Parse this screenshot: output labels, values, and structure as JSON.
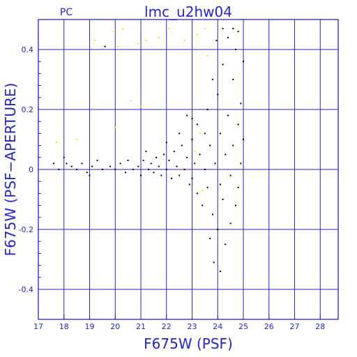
{
  "chart_data": {
    "type": "scatter",
    "title": "lmc_u2hw04",
    "corner_label": "PC",
    "xlabel": "F675W (PSF)",
    "ylabel": "F675W (PSF−APERTURE)",
    "xlim": [
      17,
      28.7
    ],
    "ylim": [
      -0.5,
      0.5
    ],
    "x_ticks": [
      17,
      18,
      19,
      20,
      21,
      22,
      23,
      24,
      25,
      26,
      27,
      28
    ],
    "y_ticks": [
      -0.4,
      -0.2,
      0,
      0.2,
      0.4
    ],
    "y_tick_labels": [
      "-0.4",
      "-0.2",
      "0",
      "0.2",
      "0.4"
    ],
    "grid": true,
    "colors": {
      "frame": "#2323cc",
      "grid": "#2323cc",
      "text": "#2323cc",
      "points": "#000000",
      "rejected_points": "#e8e800"
    },
    "series": [
      {
        "color": "#000000",
        "points": [
          [
            17.6,
            0.02
          ],
          [
            17.8,
            0.0
          ],
          [
            18.0,
            0.04
          ],
          [
            18.1,
            0.02
          ],
          [
            18.3,
            0.01
          ],
          [
            18.5,
            0.0
          ],
          [
            18.7,
            0.02
          ],
          [
            18.9,
            -0.01
          ],
          [
            19.0,
            -0.02
          ],
          [
            19.1,
            0.01
          ],
          [
            19.3,
            0.03
          ],
          [
            19.5,
            0.0
          ],
          [
            19.6,
            0.41
          ],
          [
            19.8,
            0.01
          ],
          [
            20.0,
            0.0
          ],
          [
            20.2,
            0.02
          ],
          [
            20.4,
            -0.01
          ],
          [
            20.5,
            0.03
          ],
          [
            20.7,
            0.0
          ],
          [
            20.9,
            0.01
          ],
          [
            21.0,
            -0.02
          ],
          [
            21.1,
            0.03
          ],
          [
            21.3,
            0.0
          ],
          [
            21.4,
            0.02
          ],
          [
            21.5,
            -0.01
          ],
          [
            21.6,
            0.04
          ],
          [
            21.7,
            0.01
          ],
          [
            21.8,
            -0.02
          ],
          [
            21.9,
            0.05
          ],
          [
            22.0,
            0.0
          ],
          [
            22.1,
            0.03
          ],
          [
            22.2,
            -0.03
          ],
          [
            22.3,
            0.06
          ],
          [
            22.4,
            0.01
          ],
          [
            22.5,
            -0.02
          ],
          [
            22.6,
            0.08
          ],
          [
            22.7,
            0.0
          ],
          [
            22.8,
            0.04
          ],
          [
            22.9,
            -0.05
          ],
          [
            23.0,
            0.1
          ],
          [
            23.0,
            -0.03
          ],
          [
            23.1,
            0.02
          ],
          [
            23.2,
            0.15
          ],
          [
            23.2,
            -0.08
          ],
          [
            23.3,
            0.05
          ],
          [
            23.4,
            -0.12
          ],
          [
            23.5,
            0.12
          ],
          [
            23.5,
            0.0
          ],
          [
            23.6,
            0.2
          ],
          [
            23.6,
            -0.06
          ],
          [
            23.7,
            0.08
          ],
          [
            23.8,
            0.3
          ],
          [
            23.8,
            -0.15
          ],
          [
            23.9,
            0.02
          ],
          [
            24.0,
            0.25
          ],
          [
            24.0,
            -0.2
          ],
          [
            24.1,
            0.12
          ],
          [
            24.1,
            -0.05
          ],
          [
            24.2,
            0.35
          ],
          [
            24.2,
            -0.1
          ],
          [
            24.3,
            0.05
          ],
          [
            24.3,
            -0.25
          ],
          [
            24.4,
            0.18
          ],
          [
            24.4,
            0.44
          ],
          [
            24.5,
            -0.02
          ],
          [
            24.5,
            -0.18
          ],
          [
            24.6,
            0.3
          ],
          [
            24.6,
            0.08
          ],
          [
            24.7,
            -0.12
          ],
          [
            24.7,
            0.4
          ],
          [
            24.8,
            0.15
          ],
          [
            24.8,
            -0.06
          ],
          [
            24.9,
            0.22
          ],
          [
            24.9,
            0.02
          ],
          [
            25.0,
            0.36
          ],
          [
            25.0,
            0.1
          ],
          [
            23.7,
            -0.23
          ],
          [
            23.85,
            -0.31
          ],
          [
            24.1,
            -0.34
          ],
          [
            23.0,
            0.17
          ],
          [
            22.8,
            0.18
          ],
          [
            22.5,
            0.12
          ],
          [
            22.0,
            0.09
          ],
          [
            21.2,
            0.06
          ],
          [
            24.2,
            0.47
          ],
          [
            24.6,
            0.47
          ],
          [
            23.95,
            0.43
          ],
          [
            24.8,
            0.46
          ]
        ]
      },
      {
        "color": "#e8e800",
        "points": [
          [
            17.7,
            0.09
          ],
          [
            18.5,
            0.1
          ],
          [
            19.2,
            0.43
          ],
          [
            19.9,
            0.46
          ],
          [
            20.1,
            0.41
          ],
          [
            20.3,
            0.47
          ],
          [
            20.6,
            0.23
          ],
          [
            20.9,
            0.42
          ],
          [
            21.2,
            0.43
          ],
          [
            21.7,
            0.44
          ],
          [
            22.1,
            0.47
          ],
          [
            22.7,
            0.43
          ],
          [
            23.2,
            0.45
          ],
          [
            23.5,
            0.47
          ],
          [
            23.6,
            0.38
          ],
          [
            23.3,
            0.12
          ],
          [
            23.4,
            -0.07
          ],
          [
            23.1,
            0.06
          ],
          [
            20.0,
            0.14
          ],
          [
            21.0,
            0.21
          ]
        ]
      }
    ]
  }
}
